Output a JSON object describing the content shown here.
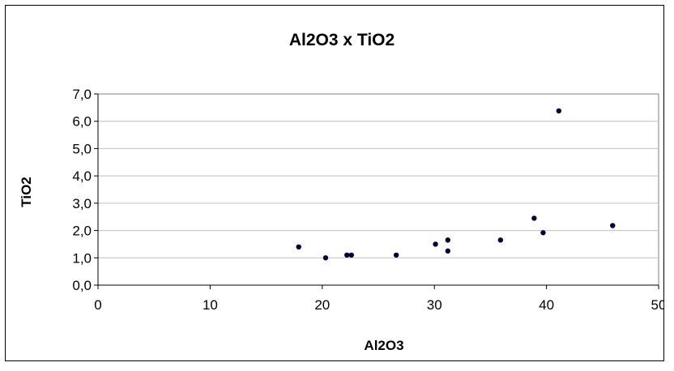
{
  "chart_data": {
    "type": "scatter",
    "title": "Al2O3 x TiO2",
    "xlabel": "Al2O3",
    "ylabel": "TiO2",
    "xlim": [
      0,
      50
    ],
    "ylim": [
      0,
      7
    ],
    "xticks": [
      "0",
      "10",
      "20",
      "30",
      "40",
      "50"
    ],
    "yticks": [
      "0,0",
      "1,0",
      "2,0",
      "3,0",
      "4,0",
      "5,0",
      "6,0",
      "7,0"
    ],
    "grid": "horizontal",
    "legend": "none",
    "marker_color": "#000033",
    "points": [
      {
        "x": 17.9,
        "y": 1.4
      },
      {
        "x": 20.3,
        "y": 1.0
      },
      {
        "x": 22.2,
        "y": 1.1
      },
      {
        "x": 22.6,
        "y": 1.1
      },
      {
        "x": 26.6,
        "y": 1.1
      },
      {
        "x": 30.1,
        "y": 1.5
      },
      {
        "x": 31.2,
        "y": 1.65
      },
      {
        "x": 31.2,
        "y": 1.25
      },
      {
        "x": 35.9,
        "y": 1.65
      },
      {
        "x": 38.9,
        "y": 2.45
      },
      {
        "x": 39.7,
        "y": 1.92
      },
      {
        "x": 41.1,
        "y": 6.38
      },
      {
        "x": 45.9,
        "y": 2.18
      }
    ]
  }
}
